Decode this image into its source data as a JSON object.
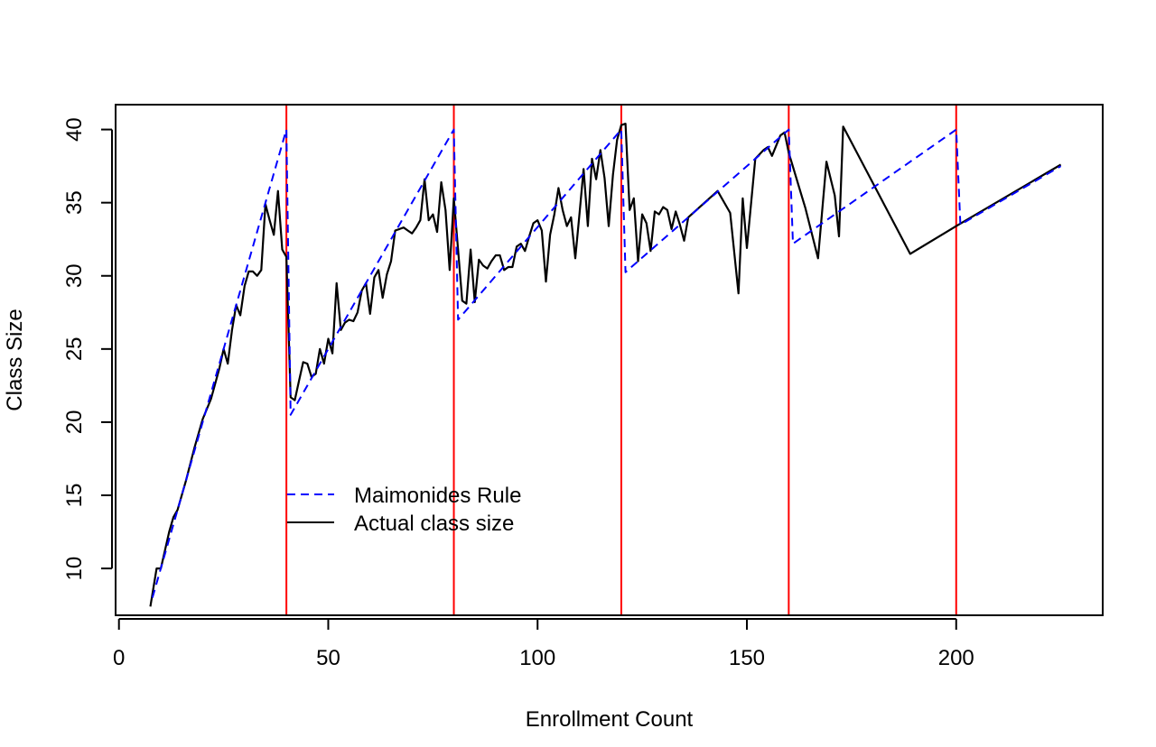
{
  "chart_data": {
    "type": "line",
    "title": "",
    "xlabel": "Enrollment Count",
    "ylabel": "Class Size",
    "xlim": [
      -0.8,
      235
    ],
    "ylim": [
      6.8,
      41.7
    ],
    "x_ticks": [
      0,
      50,
      100,
      150,
      200
    ],
    "y_ticks": [
      10,
      15,
      20,
      25,
      30,
      35,
      40
    ],
    "grid": false,
    "legend": {
      "position": "lower-left"
    },
    "colors": {
      "rule": "#0000ff",
      "actual": "#000000",
      "cutoff": "#ff0000"
    },
    "cutoffs": [
      40,
      80,
      120,
      160,
      200
    ],
    "series": [
      {
        "name": "Maimonides Rule",
        "style": "dashed",
        "points": [
          [
            8,
            8
          ],
          [
            40,
            40
          ],
          [
            41,
            20.5
          ],
          [
            80,
            40
          ],
          [
            81,
            27
          ],
          [
            120,
            40
          ],
          [
            121,
            30.25
          ],
          [
            160,
            40
          ],
          [
            161,
            32.2
          ],
          [
            200,
            40
          ],
          [
            201,
            33.5
          ],
          [
            225,
            37.5
          ]
        ]
      },
      {
        "name": "Actual class size",
        "style": "solid",
        "points": [
          [
            7.5,
            7.4
          ],
          [
            9,
            10
          ],
          [
            10,
            10
          ],
          [
            12,
            12.5
          ],
          [
            13,
            13.5
          ],
          [
            14,
            14
          ],
          [
            16,
            16
          ],
          [
            18,
            18.2
          ],
          [
            20,
            20.2
          ],
          [
            22,
            21.6
          ],
          [
            24,
            23.7
          ],
          [
            25,
            25
          ],
          [
            26,
            24
          ],
          [
            27,
            26.3
          ],
          [
            28,
            28
          ],
          [
            29,
            27.3
          ],
          [
            30,
            29.3
          ],
          [
            31,
            30.3
          ],
          [
            32,
            30.3
          ],
          [
            33,
            30
          ],
          [
            34,
            30.4
          ],
          [
            35,
            34.9
          ],
          [
            36,
            33.8
          ],
          [
            37,
            32.8
          ],
          [
            38,
            35.8
          ],
          [
            39,
            31.8
          ],
          [
            40,
            31.3
          ],
          [
            41,
            21.7
          ],
          [
            42,
            21.5
          ],
          [
            43,
            22.8
          ],
          [
            44,
            24.1
          ],
          [
            45,
            24
          ],
          [
            46,
            23.1
          ],
          [
            47,
            23.3
          ],
          [
            48,
            25
          ],
          [
            49,
            24
          ],
          [
            50,
            25.7
          ],
          [
            51,
            24.7
          ],
          [
            52,
            29.5
          ],
          [
            53,
            26.3
          ],
          [
            54,
            26.8
          ],
          [
            55,
            27
          ],
          [
            56,
            26.9
          ],
          [
            57,
            27.5
          ],
          [
            58,
            29
          ],
          [
            59,
            29.5
          ],
          [
            60,
            27.4
          ],
          [
            61,
            29.9
          ],
          [
            62,
            30.4
          ],
          [
            63,
            28.5
          ],
          [
            64,
            30.1
          ],
          [
            65,
            31
          ],
          [
            66,
            33.1
          ],
          [
            67,
            33.2
          ],
          [
            68,
            33.3
          ],
          [
            69,
            33.1
          ],
          [
            70,
            32.9
          ],
          [
            71,
            33.3
          ],
          [
            72,
            33.8
          ],
          [
            73,
            36.6
          ],
          [
            74,
            33.8
          ],
          [
            75,
            34.2
          ],
          [
            76,
            33
          ],
          [
            77,
            36.4
          ],
          [
            78,
            34.5
          ],
          [
            79,
            30.4
          ],
          [
            80,
            35.3
          ],
          [
            81,
            31.8
          ],
          [
            82,
            28.3
          ],
          [
            83,
            28.1
          ],
          [
            84,
            31.8
          ],
          [
            85,
            28.2
          ],
          [
            86,
            31.1
          ],
          [
            87,
            30.7
          ],
          [
            88,
            30.5
          ],
          [
            89,
            31
          ],
          [
            90,
            31.4
          ],
          [
            91,
            31.4
          ],
          [
            92,
            30.4
          ],
          [
            93,
            30.6
          ],
          [
            94,
            30.6
          ],
          [
            95,
            32
          ],
          [
            96,
            32.2
          ],
          [
            97,
            31.7
          ],
          [
            98,
            32.7
          ],
          [
            99,
            33.6
          ],
          [
            100,
            33.8
          ],
          [
            101,
            33.1
          ],
          [
            102,
            29.6
          ],
          [
            103,
            32.8
          ],
          [
            104,
            34.2
          ],
          [
            105,
            36
          ],
          [
            106,
            34.5
          ],
          [
            107,
            33.4
          ],
          [
            108,
            34
          ],
          [
            109,
            31.2
          ],
          [
            110,
            34.2
          ],
          [
            111,
            37.3
          ],
          [
            112,
            33.4
          ],
          [
            113,
            38
          ],
          [
            114,
            36.6
          ],
          [
            115,
            38.6
          ],
          [
            116,
            36.7
          ],
          [
            117,
            33.4
          ],
          [
            118,
            36.9
          ],
          [
            119,
            39.3
          ],
          [
            120,
            40.3
          ],
          [
            121,
            40.4
          ],
          [
            122,
            34.5
          ],
          [
            123,
            35.3
          ],
          [
            124,
            31
          ],
          [
            125,
            34.2
          ],
          [
            126,
            33.6
          ],
          [
            127,
            31.7
          ],
          [
            128,
            34.4
          ],
          [
            129,
            34.2
          ],
          [
            130,
            34.7
          ],
          [
            131,
            34.5
          ],
          [
            132,
            33.2
          ],
          [
            133,
            34.4
          ],
          [
            134,
            33.5
          ],
          [
            135,
            32.4
          ],
          [
            136,
            34
          ],
          [
            143,
            35.8
          ],
          [
            146,
            34.3
          ],
          [
            148,
            28.8
          ],
          [
            149,
            35.3
          ],
          [
            150,
            31.9
          ],
          [
            152,
            38
          ],
          [
            154,
            38.6
          ],
          [
            155,
            38.8
          ],
          [
            156,
            38.2
          ],
          [
            158,
            39.6
          ],
          [
            159,
            39.8
          ],
          [
            160,
            38.4
          ],
          [
            164,
            34.6
          ],
          [
            167,
            31.2
          ],
          [
            169,
            37.8
          ],
          [
            171,
            35.5
          ],
          [
            172,
            32.7
          ],
          [
            173,
            40.2
          ],
          [
            189,
            31.5
          ],
          [
            200,
            33.4
          ],
          [
            225,
            37.6
          ]
        ]
      }
    ]
  }
}
